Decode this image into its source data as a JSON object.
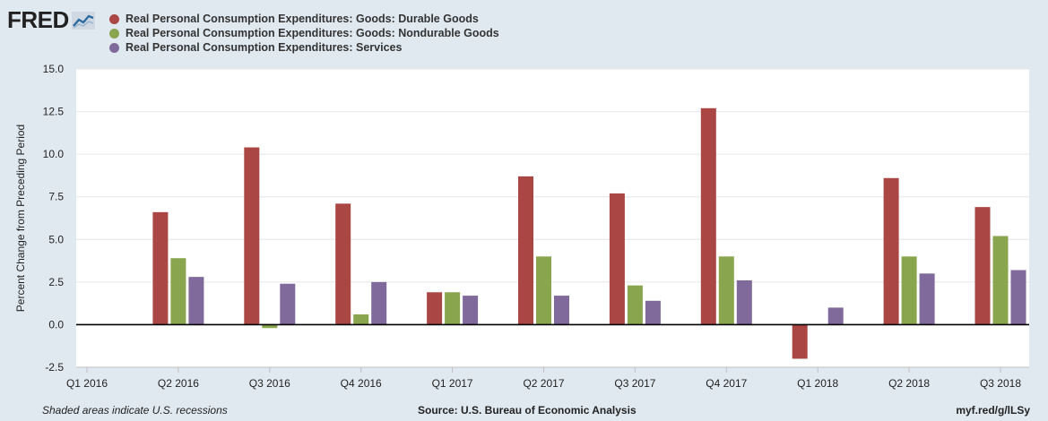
{
  "header": {
    "logo_text": "FRED",
    "logo_icon": "trend-chart-icon"
  },
  "chart_data": {
    "type": "bar",
    "categories": [
      "Q1 2016",
      "Q2 2016",
      "Q3 2016",
      "Q4 2016",
      "Q1 2017",
      "Q2 2017",
      "Q3 2017",
      "Q4 2017",
      "Q1 2018",
      "Q2 2018",
      "Q3 2018"
    ],
    "series": [
      {
        "name": "Real Personal Consumption Expenditures: Goods: Durable Goods",
        "color": "#aa4643",
        "values": [
          null,
          6.6,
          10.4,
          7.1,
          1.9,
          8.7,
          7.7,
          12.7,
          -2.0,
          8.6,
          6.9
        ]
      },
      {
        "name": "Real Personal Consumption Expenditures: Goods: Nondurable Goods",
        "color": "#89a54e",
        "values": [
          null,
          3.9,
          -0.2,
          0.6,
          1.9,
          4.0,
          2.3,
          4.0,
          null,
          4.0,
          5.2
        ]
      },
      {
        "name": "Real Personal Consumption Expenditures: Services",
        "color": "#80699b",
        "values": [
          null,
          2.8,
          2.4,
          2.5,
          1.7,
          1.7,
          1.4,
          2.6,
          1.0,
          3.0,
          3.2
        ]
      }
    ],
    "ylabel": "Percent Change from Preceding Period",
    "xlabel": "",
    "ylim": [
      -2.5,
      15.0
    ],
    "yticks": [
      "-2.5",
      "0.0",
      "2.5",
      "5.0",
      "7.5",
      "10.0",
      "12.5",
      "15.0"
    ],
    "ytick_values": [
      -2.5,
      0,
      2.5,
      5,
      7.5,
      10,
      12.5,
      15
    ],
    "grid": true,
    "legend_position": "top-left"
  },
  "footer": {
    "note": "Shaded areas indicate U.S. recessions",
    "source": "Source: U.S. Bureau of Economic Analysis",
    "link": "myf.red/g/lLSy"
  }
}
